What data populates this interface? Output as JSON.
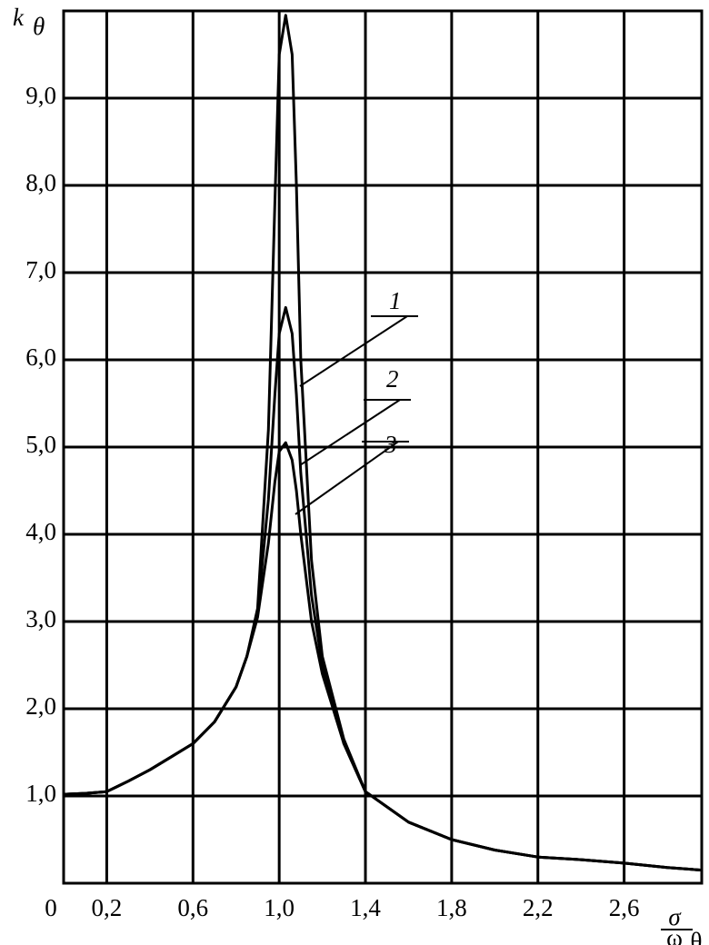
{
  "chart_data": {
    "type": "line",
    "y_label": {
      "main": "k",
      "subscript": "θ"
    },
    "x_label": {
      "numerator": "σ",
      "denominator": "ω",
      "subscript": "θ"
    },
    "x": [
      0,
      0.1,
      0.2,
      0.3,
      0.4,
      0.5,
      0.6,
      0.7,
      0.8,
      0.85,
      0.9,
      0.95,
      0.98,
      1.0,
      1.03,
      1.06,
      1.08,
      1.1,
      1.15,
      1.2,
      1.3,
      1.4,
      1.6,
      1.8,
      2.0,
      2.2,
      2.4,
      2.6,
      2.8,
      2.96
    ],
    "series": [
      {
        "name": "1",
        "color": "#000000",
        "values": [
          1.02,
          1.03,
          1.05,
          1.17,
          1.3,
          1.45,
          1.6,
          1.85,
          2.25,
          2.6,
          3.15,
          5.2,
          7.8,
          9.5,
          9.95,
          9.5,
          8.0,
          6.0,
          3.7,
          2.6,
          1.65,
          1.05,
          0.7,
          0.5,
          0.38,
          0.3,
          0.27,
          0.23,
          0.18,
          0.15
        ]
      },
      {
        "name": "2",
        "color": "#000000",
        "values": [
          1.02,
          1.03,
          1.05,
          1.17,
          1.3,
          1.45,
          1.6,
          1.85,
          2.25,
          2.6,
          3.1,
          4.4,
          5.6,
          6.3,
          6.6,
          6.3,
          5.6,
          4.7,
          3.3,
          2.5,
          1.6,
          1.05,
          0.7,
          0.5,
          0.38,
          0.3,
          0.27,
          0.23,
          0.18,
          0.15
        ]
      },
      {
        "name": "3",
        "color": "#000000",
        "values": [
          1.02,
          1.03,
          1.05,
          1.17,
          1.3,
          1.45,
          1.6,
          1.85,
          2.25,
          2.6,
          3.05,
          3.9,
          4.6,
          4.95,
          5.05,
          4.85,
          4.5,
          4.0,
          3.0,
          2.4,
          1.6,
          1.05,
          0.7,
          0.5,
          0.38,
          0.3,
          0.27,
          0.23,
          0.18,
          0.15
        ]
      }
    ],
    "xlim": [
      0,
      2.96
    ],
    "ylim": [
      0,
      10
    ],
    "xticks": [
      0,
      {
        "value": 0.2,
        "label": "0,2"
      },
      {
        "value": 0.6,
        "label": "0,6"
      },
      {
        "value": 1.0,
        "label": "1,0"
      },
      {
        "value": 1.4,
        "label": "1,4"
      },
      {
        "value": 1.8,
        "label": "1,8"
      },
      {
        "value": 2.2,
        "label": "2,2"
      },
      {
        "value": 2.6,
        "label": "2,6"
      }
    ],
    "yticks": [
      {
        "value": 1,
        "label": "1,0"
      },
      {
        "value": 2,
        "label": "2,0"
      },
      {
        "value": 3,
        "label": "3,0"
      },
      {
        "value": 4,
        "label": "4,0"
      },
      {
        "value": 5,
        "label": "5,0"
      },
      {
        "value": 6,
        "label": "6,0"
      },
      {
        "value": 7,
        "label": "7,0"
      },
      {
        "value": 8,
        "label": "8,0"
      },
      {
        "value": 9,
        "label": "9,0"
      }
    ],
    "grid": true
  }
}
